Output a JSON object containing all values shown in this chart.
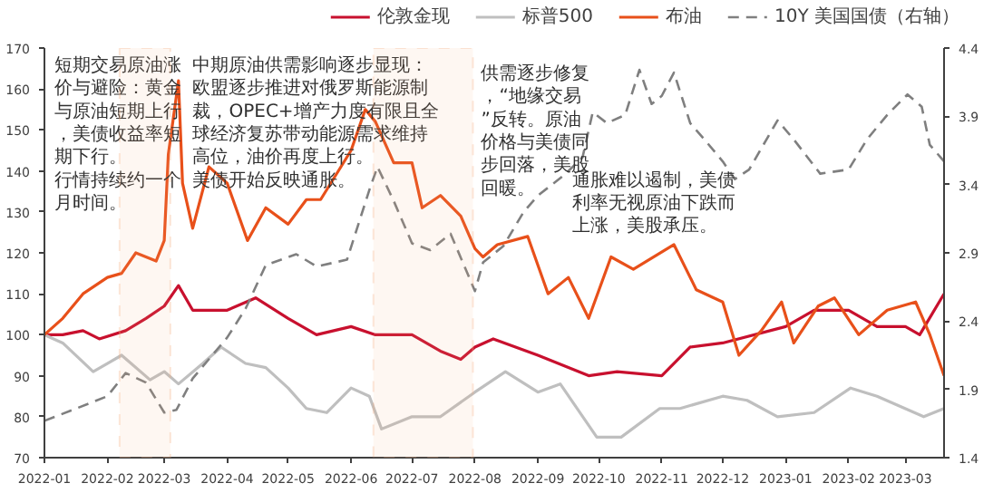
{
  "chart_data": {
    "type": "line",
    "xlim": [
      "2022-01-01",
      "2023-03-20"
    ],
    "xticks": [
      "2022-01",
      "2022-02",
      "2022-03",
      "2022-04",
      "2022-05",
      "2022-06",
      "2022-07",
      "2022-08",
      "2022-09",
      "2022-10",
      "2022-11",
      "2022-12",
      "2023-01",
      "2023-02",
      "2023-03"
    ],
    "ylim": [
      70,
      170
    ],
    "yticks": [
      70,
      80,
      90,
      100,
      110,
      120,
      130,
      140,
      150,
      160,
      170
    ],
    "y2lim": [
      1.4,
      4.4
    ],
    "y2ticks": [
      1.4,
      1.9,
      2.4,
      2.9,
      3.4,
      3.9,
      4.4
    ],
    "legend": "top right",
    "grid": false,
    "marker": "none",
    "series": [
      {
        "name": "伦敦金现",
        "color": "#c8102e",
        "line_style": "solid",
        "x": [
          "2022-01-01",
          "2022-01-10",
          "2022-01-20",
          "2022-01-28",
          "2022-02-10",
          "2022-02-20",
          "2022-03-01",
          "2022-03-08",
          "2022-03-15",
          "2022-04-01",
          "2022-04-15",
          "2022-05-01",
          "2022-05-15",
          "2022-06-01",
          "2022-06-13",
          "2022-07-01",
          "2022-07-15",
          "2022-07-25",
          "2022-08-01",
          "2022-08-10",
          "2022-09-01",
          "2022-09-26",
          "2022-10-10",
          "2022-11-01",
          "2022-11-15",
          "2022-12-01",
          "2023-01-01",
          "2023-01-15",
          "2023-02-01",
          "2023-02-15",
          "2023-03-01",
          "2023-03-08",
          "2023-03-20"
        ],
        "values": [
          100,
          100,
          101,
          99,
          101,
          104,
          107,
          112,
          106,
          106,
          109,
          104,
          100,
          102,
          100,
          100,
          96,
          94,
          97,
          99,
          95,
          90,
          91,
          90,
          97,
          98,
          102,
          106,
          106,
          102,
          102,
          100,
          110
        ]
      },
      {
        "name": "标普500",
        "color": "#bfbfbf",
        "line_style": "solid",
        "x": [
          "2022-01-01",
          "2022-01-10",
          "2022-01-25",
          "2022-02-01",
          "2022-02-08",
          "2022-02-22",
          "2022-03-01",
          "2022-03-08",
          "2022-03-20",
          "2022-03-29",
          "2022-04-10",
          "2022-04-20",
          "2022-05-01",
          "2022-05-10",
          "2022-05-20",
          "2022-06-01",
          "2022-06-10",
          "2022-06-16",
          "2022-07-01",
          "2022-07-15",
          "2022-08-01",
          "2022-08-16",
          "2022-09-01",
          "2022-09-12",
          "2022-09-30",
          "2022-10-12",
          "2022-10-31",
          "2022-11-10",
          "2022-12-01",
          "2022-12-13",
          "2022-12-28",
          "2023-01-15",
          "2023-02-02",
          "2023-02-15",
          "2023-03-10",
          "2023-03-20"
        ],
        "values": [
          100,
          98,
          91,
          93,
          95,
          89,
          91,
          88,
          93,
          97,
          93,
          92,
          87,
          82,
          81,
          87,
          85,
          77,
          80,
          80,
          86,
          91,
          86,
          88,
          75,
          75,
          82,
          82,
          85,
          84,
          80,
          81,
          87,
          85,
          80,
          82
        ]
      },
      {
        "name": "布油",
        "color": "#e8501a",
        "line_style": "solid",
        "x": [
          "2022-01-01",
          "2022-01-10",
          "2022-01-20",
          "2022-02-01",
          "2022-02-08",
          "2022-02-15",
          "2022-02-25",
          "2022-03-01",
          "2022-03-03",
          "2022-03-08",
          "2022-03-10",
          "2022-03-15",
          "2022-03-23",
          "2022-04-01",
          "2022-04-11",
          "2022-04-20",
          "2022-05-01",
          "2022-05-10",
          "2022-05-17",
          "2022-06-01",
          "2022-06-08",
          "2022-06-13",
          "2022-06-22",
          "2022-07-01",
          "2022-07-06",
          "2022-07-15",
          "2022-07-25",
          "2022-08-01",
          "2022-08-05",
          "2022-08-12",
          "2022-08-27",
          "2022-09-06",
          "2022-09-16",
          "2022-09-26",
          "2022-10-07",
          "2022-10-18",
          "2022-11-07",
          "2022-11-18",
          "2022-12-01",
          "2022-12-09",
          "2022-12-20",
          "2022-12-30",
          "2023-01-05",
          "2023-01-17",
          "2023-01-25",
          "2023-02-06",
          "2023-02-20",
          "2023-03-06",
          "2023-03-13",
          "2023-03-20"
        ],
        "values": [
          100,
          104,
          110,
          114,
          115,
          120,
          118,
          123,
          144,
          162,
          137,
          126,
          141,
          137,
          123,
          131,
          127,
          133,
          133,
          145,
          155,
          152,
          142,
          142,
          131,
          134,
          129,
          121,
          119,
          122,
          124,
          110,
          114,
          104,
          119,
          116,
          122,
          111,
          108,
          95,
          101,
          108,
          98,
          107,
          109,
          100,
          106,
          108,
          100,
          90
        ]
      },
      {
        "name": "10Y 美国国债（右轴）",
        "color": "#7f7f7f",
        "line_style": "dashed",
        "axis": "y2",
        "x": [
          "2022-01-01",
          "2022-01-15",
          "2022-02-01",
          "2022-02-10",
          "2022-02-20",
          "2022-03-01",
          "2022-03-07",
          "2022-03-15",
          "2022-04-01",
          "2022-04-10",
          "2022-04-20",
          "2022-05-05",
          "2022-05-15",
          "2022-05-30",
          "2022-06-10",
          "2022-06-14",
          "2022-06-22",
          "2022-07-01",
          "2022-07-10",
          "2022-07-20",
          "2022-08-01",
          "2022-08-05",
          "2022-08-15",
          "2022-08-25",
          "2022-09-01",
          "2022-09-14",
          "2022-09-23",
          "2022-09-28",
          "2022-10-05",
          "2022-10-14",
          "2022-10-21",
          "2022-10-27",
          "2022-11-01",
          "2022-11-07",
          "2022-11-15",
          "2022-11-22",
          "2022-12-01",
          "2022-12-07",
          "2022-12-14",
          "2022-12-28",
          "2023-01-05",
          "2023-01-18",
          "2023-02-01",
          "2023-02-10",
          "2023-02-20",
          "2023-03-02",
          "2023-03-09",
          "2023-03-13",
          "2023-03-20"
        ],
        "values": [
          1.67,
          1.75,
          1.85,
          2.02,
          1.95,
          1.73,
          1.75,
          1.98,
          2.28,
          2.49,
          2.81,
          2.89,
          2.8,
          2.85,
          3.36,
          3.53,
          3.28,
          2.97,
          2.92,
          3.04,
          2.62,
          2.83,
          2.95,
          3.2,
          3.32,
          3.47,
          3.6,
          3.93,
          3.85,
          3.91,
          4.24,
          3.99,
          4.05,
          4.22,
          3.85,
          3.73,
          3.57,
          3.44,
          3.51,
          3.87,
          3.73,
          3.48,
          3.51,
          3.73,
          3.91,
          4.06,
          3.97,
          3.69,
          3.57
        ]
      }
    ],
    "bands": [
      {
        "axis": "x",
        "from": "2022-02-07",
        "to": "2022-03-04",
        "color": "#f4b183"
      },
      {
        "axis": "x",
        "from": "2022-06-12",
        "to": "2022-07-31",
        "color": "#f4b183"
      }
    ],
    "annotations": [
      "短期交易原油涨价与避险：黄金与原油短期上行，美债收益率短期下行。",
      "行情持续约一个月时间。",
      "中期原油供需影响逐步显现：欧盟逐步推进对俄罗斯能源制裁，OPEC+增产力度有限且全球经济复苏带动能源需求维持高位，油价再度上行。",
      "美债开始反映通胀。",
      "供需逐步修复，“地缘交易”反转。原油价格与美债同步回落，美股回暖。",
      "通胀难以遏制，美债利率无视原油下跌而上涨，美股承压。"
    ]
  }
}
